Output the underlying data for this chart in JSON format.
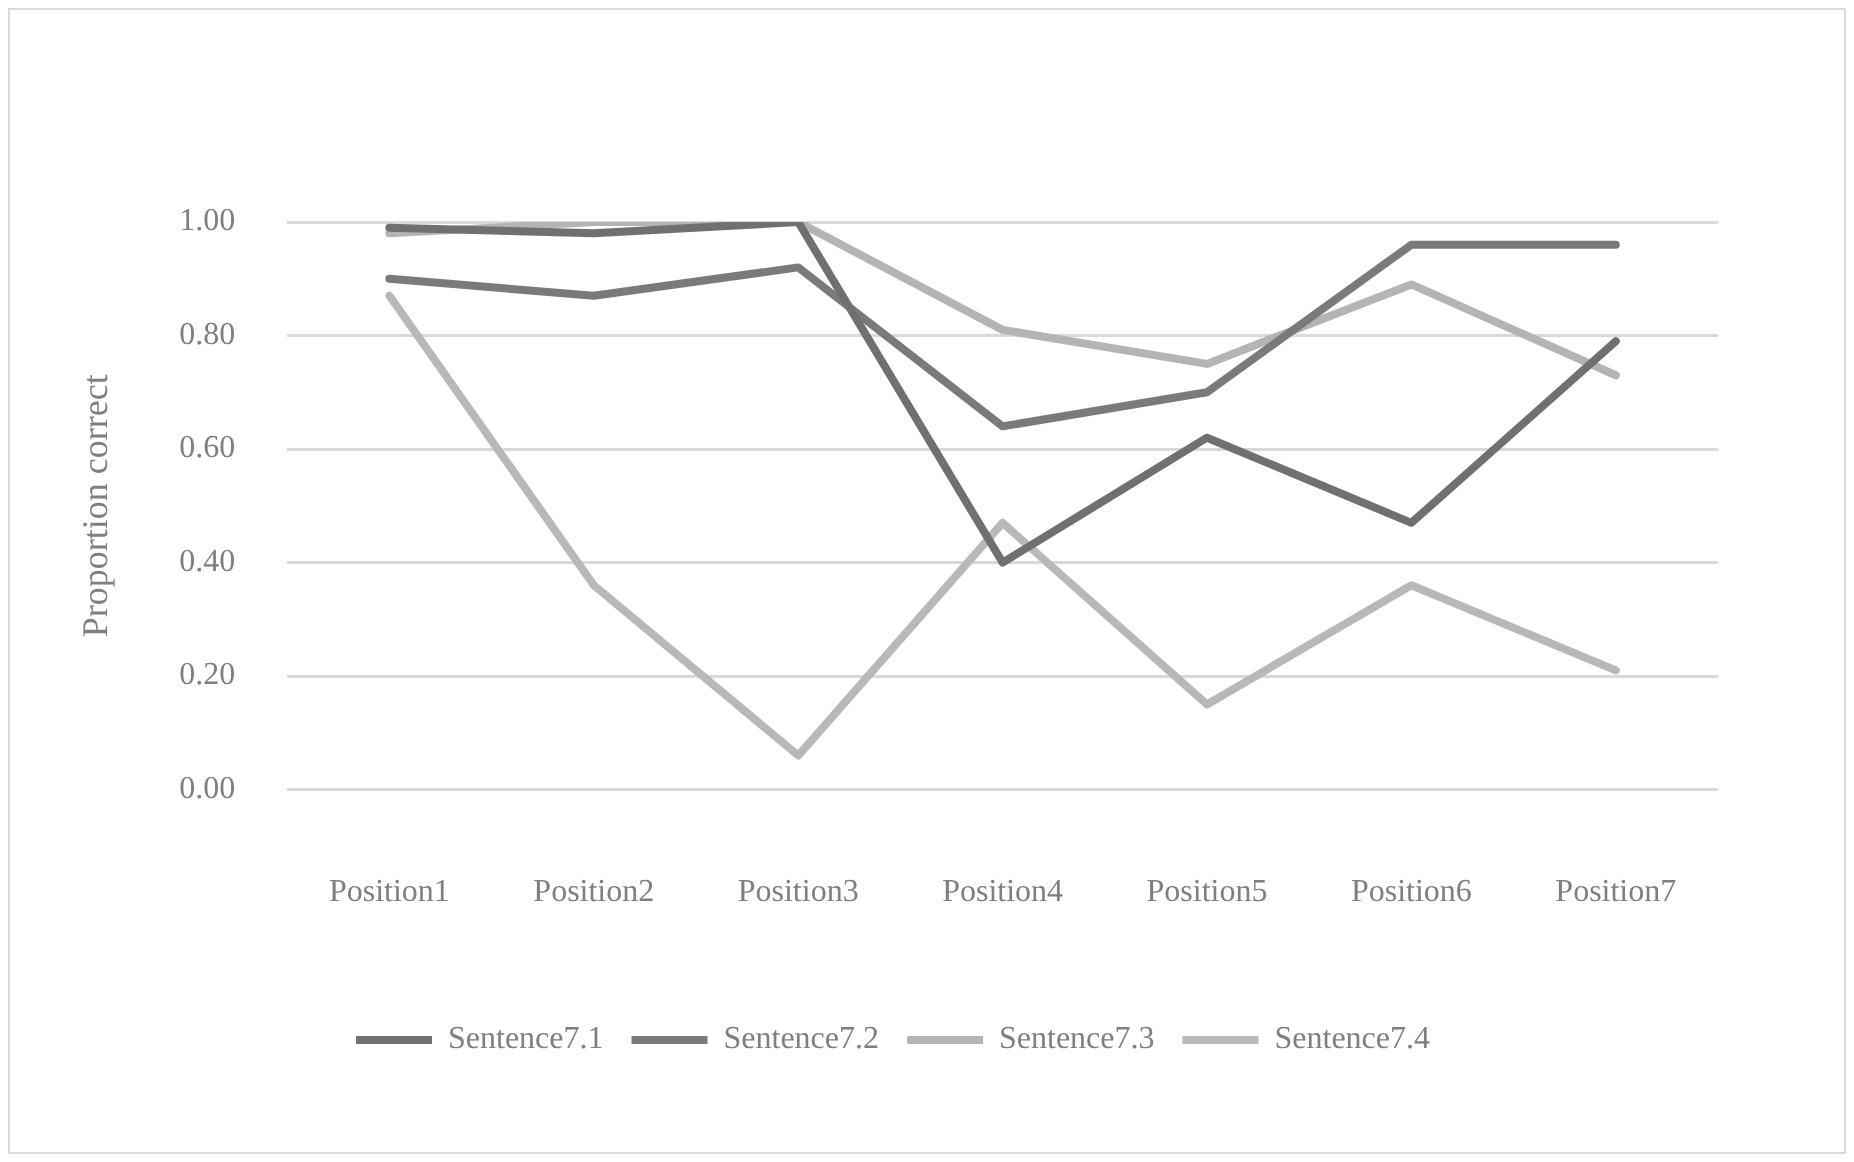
{
  "chart_data": {
    "type": "line",
    "ylabel": "Proportion correct",
    "categories": [
      "Position1",
      "Position2",
      "Position3",
      "Position4",
      "Position5",
      "Position6",
      "Position7"
    ],
    "series": [
      {
        "name": "Sentence7.1",
        "color": "#707070",
        "values": [
          0.99,
          0.98,
          1.0,
          0.4,
          0.62,
          0.47,
          0.79
        ]
      },
      {
        "name": "Sentence7.2",
        "color": "#7a7a7a",
        "values": [
          0.9,
          0.87,
          0.92,
          0.64,
          0.7,
          0.96,
          0.96
        ]
      },
      {
        "name": "Sentence7.3",
        "color": "#b4b4b4",
        "values": [
          0.98,
          1.0,
          1.0,
          0.81,
          0.75,
          0.89,
          0.73
        ]
      },
      {
        "name": "Sentence7.4",
        "color": "#b8b8bb",
        "values": [
          0.87,
          0.36,
          0.06,
          0.47,
          0.15,
          0.36,
          0.21
        ]
      }
    ],
    "ylim": [
      0,
      1
    ],
    "yticks": [
      {
        "value": 0,
        "label": "0.00"
      },
      {
        "value": 0.2,
        "label": "0.20"
      },
      {
        "value": 0.4,
        "label": "0.40"
      },
      {
        "value": 0.6,
        "label": "0.60"
      },
      {
        "value": 0.8,
        "label": "0.80"
      },
      {
        "value": 1,
        "label": "1.00"
      }
    ],
    "grid": "y",
    "legend": "bottom",
    "marker": "none",
    "line_style": "solid"
  }
}
